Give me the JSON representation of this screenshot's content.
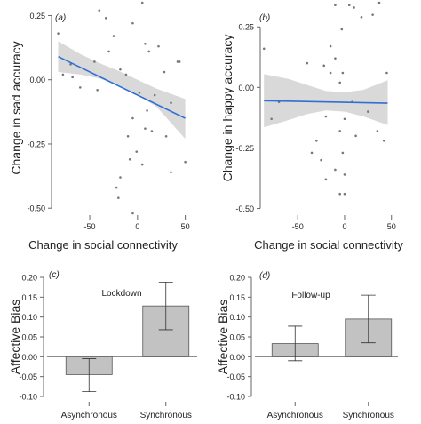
{
  "colors": {
    "point": "#777777",
    "fit_line": "#2f6fd6",
    "ci_band": "#d9d9d9",
    "bar_fill": "#c2c2c2",
    "bar_stroke": "#555555",
    "axis": "#666666",
    "text": "#222222"
  },
  "chart_data": [
    {
      "type": "scatter",
      "panel_label": "(a)",
      "xlabel": "Change in social connectivity",
      "ylabel": "Change in sad accuracy",
      "xlim": [
        -90,
        55
      ],
      "ylim": [
        -0.52,
        0.3
      ],
      "xticks": [
        -50,
        0,
        50
      ],
      "xtick_labels": [
        "-50",
        "0",
        "50"
      ],
      "yticks": [
        -0.5,
        -0.25,
        0.0,
        0.25
      ],
      "ytick_labels": [
        "-0.50",
        "-0.25",
        "0.00",
        "0.25"
      ],
      "points": [
        [
          -83,
          0.18
        ],
        [
          -70,
          0.06
        ],
        [
          -78,
          0.02
        ],
        [
          -68,
          0.01
        ],
        [
          -45,
          0.07
        ],
        [
          -40,
          0.27
        ],
        [
          -33,
          0.24
        ],
        [
          -25,
          0.17
        ],
        [
          -18,
          0.04
        ],
        [
          -12,
          0.02
        ],
        [
          -30,
          0.11
        ],
        [
          -42,
          -0.04
        ],
        [
          -60,
          -0.03
        ],
        [
          -5,
          0.22
        ],
        [
          5,
          0.3
        ],
        [
          8,
          0.14
        ],
        [
          12,
          0.11
        ],
        [
          22,
          0.13
        ],
        [
          28,
          0.03
        ],
        [
          42,
          0.07
        ],
        [
          44,
          0.07
        ],
        [
          35,
          -0.09
        ],
        [
          30,
          -0.22
        ],
        [
          18,
          -0.06
        ],
        [
          2,
          -0.05
        ],
        [
          8,
          -0.19
        ],
        [
          15,
          -0.2
        ],
        [
          10,
          -0.12
        ],
        [
          -5,
          -0.15
        ],
        [
          -8,
          -0.31
        ],
        [
          -18,
          -0.38
        ],
        [
          -22,
          -0.42
        ],
        [
          -20,
          -0.46
        ],
        [
          -5,
          -0.52
        ],
        [
          35,
          -0.36
        ],
        [
          50,
          -0.32
        ],
        [
          -1,
          -0.28
        ],
        [
          5,
          -0.33
        ],
        [
          -10,
          -0.22
        ]
      ],
      "fit": {
        "x": [
          -83,
          50
        ],
        "y": [
          0.09,
          -0.15
        ]
      },
      "ci_band": {
        "x": [
          -83,
          -60,
          -40,
          -20,
          0,
          20,
          50
        ],
        "upper": [
          0.15,
          0.1,
          0.065,
          0.035,
          0.0,
          -0.035,
          -0.075
        ],
        "lower": [
          0.03,
          0.02,
          0.005,
          -0.02,
          -0.06,
          -0.105,
          -0.23
        ]
      }
    },
    {
      "type": "scatter",
      "panel_label": "(b)",
      "xlabel": "Change in social connectivity",
      "ylabel": "Change in happy accuracy",
      "xlim": [
        -90,
        55
      ],
      "ylim": [
        -0.52,
        0.35
      ],
      "xticks": [
        -50,
        0,
        50
      ],
      "xtick_labels": [
        "-50",
        "0",
        "50"
      ],
      "yticks": [
        -0.5,
        -0.25,
        0.0,
        0.25
      ],
      "ytick_labels": [
        "-0.50",
        "-0.25",
        "0.00",
        "0.25"
      ],
      "points": [
        [
          -86,
          0.16
        ],
        [
          -78,
          -0.13
        ],
        [
          -70,
          -0.06
        ],
        [
          -40,
          0.1
        ],
        [
          -22,
          0.09
        ],
        [
          -15,
          0.06
        ],
        [
          -10,
          0.12
        ],
        [
          -5,
          0.02
        ],
        [
          -2,
          0.06
        ],
        [
          -3,
          0.24
        ],
        [
          5,
          0.34
        ],
        [
          10,
          0.33
        ],
        [
          18,
          0.29
        ],
        [
          30,
          0.3
        ],
        [
          37,
          0.35
        ],
        [
          42,
          0.37
        ],
        [
          45,
          0.06
        ],
        [
          -10,
          0.34
        ],
        [
          -15,
          0.17
        ],
        [
          -20,
          -0.12
        ],
        [
          -30,
          -0.22
        ],
        [
          -35,
          -0.27
        ],
        [
          -25,
          -0.3
        ],
        [
          -20,
          -0.38
        ],
        [
          -10,
          -0.34
        ],
        [
          -5,
          -0.44
        ],
        [
          0,
          -0.44
        ],
        [
          0,
          -0.36
        ],
        [
          -2,
          -0.27
        ],
        [
          25,
          -0.1
        ],
        [
          35,
          -0.18
        ],
        [
          42,
          -0.22
        ],
        [
          12,
          -0.2
        ],
        [
          8,
          -0.06
        ],
        [
          0,
          -0.13
        ],
        [
          -5,
          -0.18
        ]
      ],
      "fit": {
        "x": [
          -86,
          46
        ],
        "y": [
          -0.055,
          -0.065
        ]
      },
      "ci_band": {
        "x": [
          -86,
          -60,
          -40,
          -20,
          0,
          20,
          46
        ],
        "upper": [
          0.055,
          0.035,
          0.01,
          -0.015,
          -0.02,
          -0.01,
          0.03
        ],
        "lower": [
          -0.165,
          -0.135,
          -0.11,
          -0.095,
          -0.1,
          -0.12,
          -0.155
        ]
      }
    },
    {
      "type": "bar",
      "panel_label": "(c)",
      "annotation": "Lockdown",
      "ylabel": "Affective Bias",
      "categories": [
        "Asynchronous",
        "Synchronous"
      ],
      "values": [
        -0.045,
        0.128
      ],
      "error_low": [
        -0.088,
        0.068
      ],
      "error_high": [
        -0.005,
        0.188
      ],
      "ylim": [
        -0.1,
        0.2
      ],
      "yticks": [
        -0.1,
        -0.05,
        0.0,
        0.05,
        0.1,
        0.15,
        0.2
      ],
      "ytick_labels": [
        "-0.10",
        "-0.05",
        "0.00",
        "0.05",
        "0.10",
        "0.15",
        "0.20"
      ]
    },
    {
      "type": "bar",
      "panel_label": "(d)",
      "annotation": "Follow-up",
      "ylabel": "Affective Bias",
      "categories": [
        "Asynchronous",
        "Synchronous"
      ],
      "values": [
        0.033,
        0.095
      ],
      "error_low": [
        -0.01,
        0.035
      ],
      "error_high": [
        0.077,
        0.155
      ],
      "ylim": [
        -0.1,
        0.2
      ],
      "yticks": [
        -0.1,
        -0.05,
        0.0,
        0.05,
        0.1,
        0.15,
        0.2
      ],
      "ytick_labels": [
        "-0.10",
        "-0.05",
        "0.00",
        "0.05",
        "0.10",
        "0.15",
        "0.20"
      ]
    }
  ]
}
